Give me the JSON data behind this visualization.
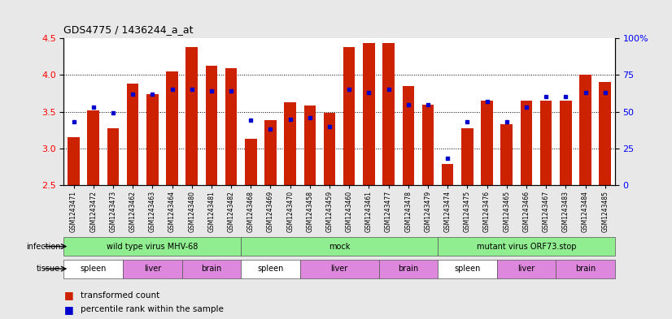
{
  "title": "GDS4775 / 1436244_a_at",
  "samples": [
    "GSM1243471",
    "GSM1243472",
    "GSM1243473",
    "GSM1243462",
    "GSM1243463",
    "GSM1243464",
    "GSM1243480",
    "GSM1243481",
    "GSM1243482",
    "GSM1243468",
    "GSM1243469",
    "GSM1243470",
    "GSM1243458",
    "GSM1243459",
    "GSM1243460",
    "GSM1243461",
    "GSM1243477",
    "GSM1243478",
    "GSM1243479",
    "GSM1243474",
    "GSM1243475",
    "GSM1243476",
    "GSM1243465",
    "GSM1243466",
    "GSM1243467",
    "GSM1243483",
    "GSM1243484",
    "GSM1243485"
  ],
  "bar_values": [
    3.15,
    3.52,
    3.27,
    3.88,
    3.74,
    4.05,
    4.38,
    4.13,
    4.09,
    3.13,
    3.38,
    3.63,
    3.58,
    3.48,
    4.38,
    4.43,
    4.43,
    3.85,
    3.6,
    2.79,
    3.27,
    3.65,
    3.33,
    3.65,
    3.65,
    3.65,
    4.0,
    3.9
  ],
  "percentile_values": [
    43,
    53,
    49,
    62,
    62,
    65,
    65,
    64,
    64,
    44,
    38,
    45,
    46,
    40,
    65,
    63,
    65,
    55,
    55,
    18,
    43,
    57,
    43,
    53,
    60,
    60,
    63,
    63
  ],
  "bar_color": "#cc2200",
  "dot_color": "#0000cc",
  "ylim_left": [
    2.5,
    4.5
  ],
  "ylim_right": [
    0,
    100
  ],
  "yticks_left": [
    2.5,
    3.0,
    3.5,
    4.0,
    4.5
  ],
  "yticks_right": [
    0,
    25,
    50,
    75,
    100
  ],
  "background_color": "#e8e8e8",
  "plot_bg_color": "#ffffff",
  "green_color": "#90ee90",
  "tissue_spleen_color": "#ffffff",
  "tissue_liver_brain_color": "#dd88dd",
  "infection_groups": [
    {
      "label": "wild type virus MHV-68",
      "start": 0,
      "end": 9
    },
    {
      "label": "mock",
      "start": 9,
      "end": 19
    },
    {
      "label": "mutant virus ORF73.stop",
      "start": 19,
      "end": 28
    }
  ],
  "tissue_groups": [
    {
      "label": "spleen",
      "start": 0,
      "end": 3
    },
    {
      "label": "liver",
      "start": 3,
      "end": 6
    },
    {
      "label": "brain",
      "start": 6,
      "end": 9
    },
    {
      "label": "spleen",
      "start": 9,
      "end": 12
    },
    {
      "label": "liver",
      "start": 12,
      "end": 16
    },
    {
      "label": "brain",
      "start": 16,
      "end": 19
    },
    {
      "label": "spleen",
      "start": 19,
      "end": 22
    },
    {
      "label": "liver",
      "start": 22,
      "end": 25
    },
    {
      "label": "brain",
      "start": 25,
      "end": 28
    }
  ]
}
